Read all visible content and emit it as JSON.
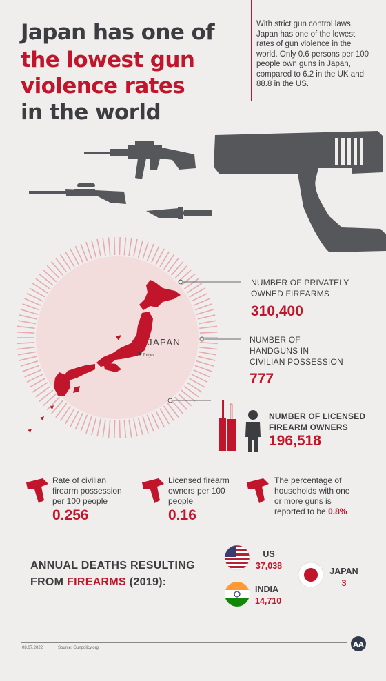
{
  "title": {
    "line1": "Japan has one of",
    "line2": "the lowest gun",
    "line3": "violence rates",
    "line4": "in the world"
  },
  "intro": "With strict gun control laws, Japan has one of the lowest rates of gun violence in the world. Only 0.6 persons per 100 people own guns in Japan, compared to 6.2 in the UK and 88.8 in the US.",
  "map": {
    "country_label": "JAPAN",
    "city_label": "Tokyo"
  },
  "stats": [
    {
      "label_lines": [
        "NUMBER OF PRIVATELY",
        "OWNED FIREARMS"
      ],
      "value": "310,400"
    },
    {
      "label_lines": [
        "NUMBER OF",
        "HANDGUNS IN",
        "CIVILIAN POSSESSION"
      ],
      "value": "777"
    },
    {
      "label_lines": [
        "NUMBER OF LICENSED",
        "FIREARM OWNERS"
      ],
      "value": "196,518"
    }
  ],
  "mini_stats": [
    {
      "label_lines": [
        "Rate of civilian",
        "firearm possession",
        "per 100 people"
      ],
      "value": "0.256"
    },
    {
      "label_lines": [
        "Licensed firearm",
        "owners per 100",
        "people"
      ],
      "value": "0.16"
    },
    {
      "label_lines": [
        "The percentage of",
        "households with one",
        "or more guns is",
        "reported to be"
      ],
      "value": "0.8%"
    }
  ],
  "deaths": {
    "title_line1": "ANNUAL DEATHS RESULTING",
    "title_line2_prefix": "FROM ",
    "title_line2_highlight": "FIREARMS",
    "title_line2_suffix": " (2019):",
    "countries": [
      {
        "name": "US",
        "count": "37,038"
      },
      {
        "name": "INDIA",
        "count": "14,710"
      },
      {
        "name": "JAPAN",
        "count": "3"
      }
    ]
  },
  "footer": {
    "date": "08.07.2022",
    "source": "Source: Gunpolicy.org",
    "logo": "AA"
  },
  "colors": {
    "background": "#efeeec",
    "accent_red": "#c0152a",
    "dark_gray": "#3c3d41",
    "gun_gray": "#56575b"
  },
  "icons": [
    "rifle-icon",
    "sniper-rifle-icon",
    "knife-icon",
    "pistol-icon",
    "person-icon",
    "rifles-icon",
    "handgun-icon",
    "us-flag-icon",
    "india-flag-icon",
    "japan-flag-icon",
    "aa-logo-icon"
  ]
}
